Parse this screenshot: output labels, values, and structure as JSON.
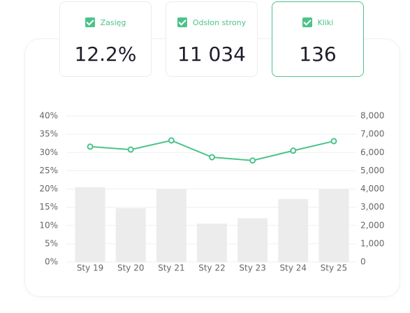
{
  "cards": [
    {
      "label": "Zasięg",
      "value": "12.2%"
    },
    {
      "label": "Odsłon strony",
      "value": "11 034"
    },
    {
      "label": "Kliki",
      "value": "136",
      "selected": true
    }
  ],
  "chart_data": {
    "type": "bar-line",
    "categories": [
      "Sty 19",
      "Sty 20",
      "Sty 21",
      "Sty 22",
      "Sty 23",
      "Sty 24",
      "Sty 25"
    ],
    "series": [
      {
        "type": "bar",
        "axis": "y2",
        "color": "#ececec",
        "values": [
          4100,
          2950,
          4000,
          2100,
          2400,
          3450,
          4000
        ]
      },
      {
        "type": "line",
        "axis": "y",
        "color": "#4cc38a",
        "values": [
          31.6,
          30.8,
          33.3,
          28.7,
          27.8,
          30.5,
          33.1
        ]
      }
    ],
    "ylim": [
      0,
      40
    ],
    "yticks": [
      {
        "value": 0,
        "label": "0%"
      },
      {
        "value": 5,
        "label": "5%"
      },
      {
        "value": 10,
        "label": "10%"
      },
      {
        "value": 15,
        "label": "15%"
      },
      {
        "value": 20,
        "label": "20%"
      },
      {
        "value": 25,
        "label": "25%"
      },
      {
        "value": 30,
        "label": "30%"
      },
      {
        "value": 35,
        "label": "35%"
      },
      {
        "value": 40,
        "label": "40%"
      }
    ],
    "y2lim": [
      0,
      8000
    ],
    "y2ticks": [
      0,
      {
        "value": 1000,
        "label": "1,000"
      },
      {
        "value": 2000,
        "label": "2,000"
      },
      {
        "value": 3000,
        "label": "3,000"
      },
      {
        "value": 4000,
        "label": "4,000"
      },
      {
        "value": 5000,
        "label": "5,000"
      },
      {
        "value": 6000,
        "label": "6,000"
      },
      {
        "value": 7000,
        "label": "7,000"
      },
      {
        "value": 8000,
        "label": "8,000"
      }
    ],
    "grid": true
  }
}
